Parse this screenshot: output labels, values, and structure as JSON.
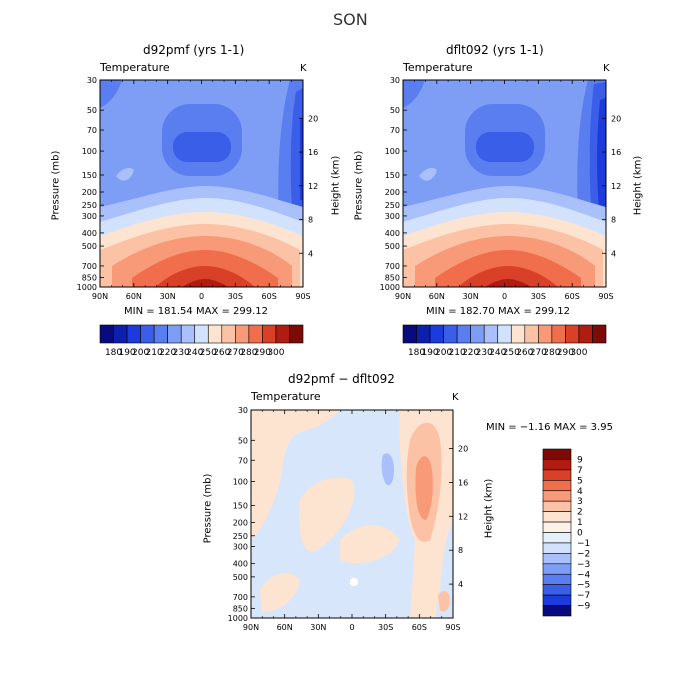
{
  "main_title": "SON",
  "panels": [
    {
      "title": "d92pmf (yrs 1-1)",
      "variable": "Temperature",
      "units": "K",
      "min_max": "MIN = 181.54   MAX = 299.12"
    },
    {
      "title": "dflt092 (yrs 1-1)",
      "variable": "Temperature",
      "units": "K",
      "min_max": "MIN = 182.70   MAX = 299.12"
    },
    {
      "title": "d92pmf − dflt092",
      "variable": "Temperature",
      "units": "K",
      "min_max": "MIN =   −1.16   MAX =    3.95"
    }
  ],
  "axes": {
    "ylabel_left": "Pressure (mb)",
    "ylabel_right": "Height (km)",
    "pressure_ticks": [
      "30",
      "50",
      "70",
      "100",
      "150",
      "200",
      "250",
      "300",
      "400",
      "500",
      "700",
      "850",
      "1000"
    ],
    "height_ticks": [
      "20",
      "16",
      "12",
      "8",
      "4"
    ],
    "lat_ticks": [
      "90N",
      "60N",
      "30N",
      "0",
      "30S",
      "60S",
      "90S"
    ]
  },
  "colorbar_top": {
    "labels": [
      "180",
      "190",
      "200",
      "210",
      "220",
      "230",
      "240",
      "250",
      "260",
      "270",
      "280",
      "290",
      "300"
    ],
    "colors": [
      "#0a0a7f",
      "#0e1fb0",
      "#1d3bdc",
      "#3a5ee8",
      "#5a7ef0",
      "#7e9ef6",
      "#a9c0fb",
      "#d2e2fd",
      "#fde4d1",
      "#fcc2a5",
      "#f89a78",
      "#f06e4c",
      "#d84027",
      "#b01d10",
      "#7c0a07"
    ]
  },
  "colorbar_diff": {
    "labels": [
      "9",
      "7",
      "5",
      "4",
      "3",
      "2",
      "1",
      "0",
      "−1",
      "−2",
      "−3",
      "−4",
      "−5",
      "−7",
      "−9"
    ],
    "colors": [
      "#7c0a07",
      "#b01d10",
      "#d84027",
      "#f06e4c",
      "#f89a78",
      "#fcc2a5",
      "#fde4d1",
      "#fdf0e6",
      "#e6f0fd",
      "#d2e2fd",
      "#a9c0fb",
      "#7e9ef6",
      "#5a7ef0",
      "#3a5ee8",
      "#1d3bdc",
      "#0a0a7f"
    ]
  },
  "chart_data": [
    {
      "type": "heatmap",
      "title": "d92pmf (yrs 1-1)",
      "variable": "Temperature",
      "units": "K",
      "xlabel": "",
      "ylabel": "Pressure (mb)",
      "ylabel_right": "Height (km)",
      "x_ticks": [
        "90N",
        "60N",
        "30N",
        "0",
        "30S",
        "60S",
        "90S"
      ],
      "y_ticks": [
        30,
        50,
        70,
        100,
        150,
        200,
        250,
        300,
        400,
        500,
        700,
        850,
        1000
      ],
      "y_scale": "log",
      "min": 181.54,
      "max": 299.12,
      "contour_levels": [
        180,
        190,
        200,
        210,
        220,
        230,
        240,
        250,
        260,
        270,
        280,
        290,
        300
      ]
    },
    {
      "type": "heatmap",
      "title": "dflt092 (yrs 1-1)",
      "variable": "Temperature",
      "units": "K",
      "xlabel": "",
      "ylabel": "Pressure (mb)",
      "ylabel_right": "Height (km)",
      "x_ticks": [
        "90N",
        "60N",
        "30N",
        "0",
        "30S",
        "60S",
        "90S"
      ],
      "y_ticks": [
        30,
        50,
        70,
        100,
        150,
        200,
        250,
        300,
        400,
        500,
        700,
        850,
        1000
      ],
      "y_scale": "log",
      "min": 182.7,
      "max": 299.12,
      "contour_levels": [
        180,
        190,
        200,
        210,
        220,
        230,
        240,
        250,
        260,
        270,
        280,
        290,
        300
      ]
    },
    {
      "type": "heatmap",
      "title": "d92pmf − dflt092",
      "variable": "Temperature",
      "units": "K",
      "xlabel": "",
      "ylabel": "Pressure (mb)",
      "ylabel_right": "Height (km)",
      "x_ticks": [
        "90N",
        "60N",
        "30N",
        "0",
        "30S",
        "60S",
        "90S"
      ],
      "y_ticks": [
        30,
        50,
        70,
        100,
        150,
        200,
        250,
        300,
        400,
        500,
        700,
        850,
        1000
      ],
      "y_scale": "log",
      "min": -1.16,
      "max": 3.95,
      "contour_levels": [
        -9,
        -7,
        -5,
        -4,
        -3,
        -2,
        -1,
        0,
        1,
        2,
        3,
        4,
        5,
        7,
        9
      ]
    }
  ]
}
